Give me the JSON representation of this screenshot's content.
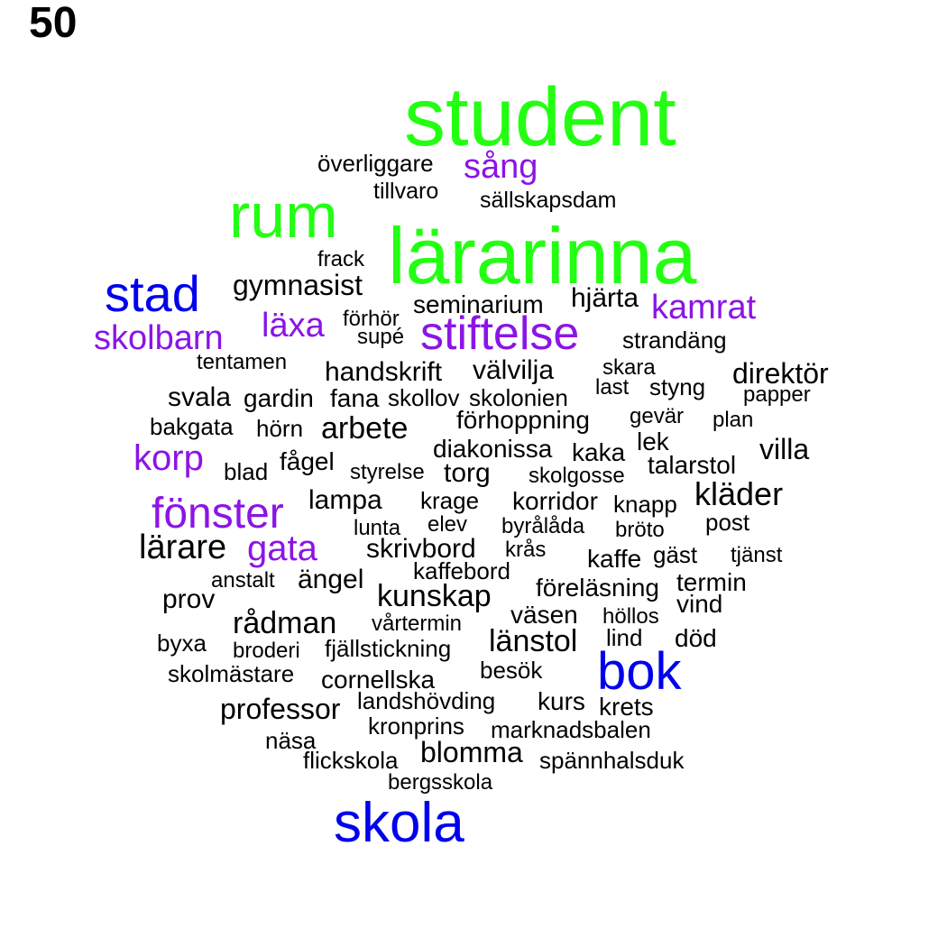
{
  "page_number": "50",
  "colors": {
    "green": "#22ff11",
    "blue": "#0000ee",
    "purple": "#8b14e6",
    "black": "#000000"
  },
  "words": [
    {
      "text": "student",
      "color": "green"
    },
    {
      "text": "överliggare",
      "color": "black"
    },
    {
      "text": "sång",
      "color": "purple"
    },
    {
      "text": "tillvaro",
      "color": "black"
    },
    {
      "text": "sällskapsdam",
      "color": "black"
    },
    {
      "text": "rum",
      "color": "green"
    },
    {
      "text": "lärarinna",
      "color": "green"
    },
    {
      "text": "frack",
      "color": "black"
    },
    {
      "text": "stad",
      "color": "blue"
    },
    {
      "text": "gymnasist",
      "color": "black"
    },
    {
      "text": "seminarium",
      "color": "black"
    },
    {
      "text": "hjärta",
      "color": "black"
    },
    {
      "text": "kamrat",
      "color": "purple"
    },
    {
      "text": "läxa",
      "color": "purple"
    },
    {
      "text": "förhör",
      "color": "black"
    },
    {
      "text": "stiftelse",
      "color": "purple"
    },
    {
      "text": "skolbarn",
      "color": "purple"
    },
    {
      "text": "supé",
      "color": "black"
    },
    {
      "text": "strandäng",
      "color": "black"
    },
    {
      "text": "tentamen",
      "color": "black"
    },
    {
      "text": "handskrift",
      "color": "black"
    },
    {
      "text": "välvilja",
      "color": "black"
    },
    {
      "text": "skara",
      "color": "black"
    },
    {
      "text": "direktör",
      "color": "black"
    },
    {
      "text": "svala",
      "color": "black"
    },
    {
      "text": "gardin",
      "color": "black"
    },
    {
      "text": "fana",
      "color": "black"
    },
    {
      "text": "skollov",
      "color": "black"
    },
    {
      "text": "skolonien",
      "color": "black"
    },
    {
      "text": "last",
      "color": "black"
    },
    {
      "text": "styng",
      "color": "black"
    },
    {
      "text": "papper",
      "color": "black"
    },
    {
      "text": "bakgata",
      "color": "black"
    },
    {
      "text": "hörn",
      "color": "black"
    },
    {
      "text": "arbete",
      "color": "black"
    },
    {
      "text": "förhoppning",
      "color": "black"
    },
    {
      "text": "gevär",
      "color": "black"
    },
    {
      "text": "plan",
      "color": "black"
    },
    {
      "text": "korp",
      "color": "purple"
    },
    {
      "text": "diakonissa",
      "color": "black"
    },
    {
      "text": "kaka",
      "color": "black"
    },
    {
      "text": "lek",
      "color": "black"
    },
    {
      "text": "villa",
      "color": "black"
    },
    {
      "text": "blad",
      "color": "black"
    },
    {
      "text": "fågel",
      "color": "black"
    },
    {
      "text": "styrelse",
      "color": "black"
    },
    {
      "text": "torg",
      "color": "black"
    },
    {
      "text": "skolgosse",
      "color": "black"
    },
    {
      "text": "talarstol",
      "color": "black"
    },
    {
      "text": "fönster",
      "color": "purple"
    },
    {
      "text": "lampa",
      "color": "black"
    },
    {
      "text": "krage",
      "color": "black"
    },
    {
      "text": "korridor",
      "color": "black"
    },
    {
      "text": "knapp",
      "color": "black"
    },
    {
      "text": "kläder",
      "color": "black"
    },
    {
      "text": "lunta",
      "color": "black"
    },
    {
      "text": "elev",
      "color": "black"
    },
    {
      "text": "byrålåda",
      "color": "black"
    },
    {
      "text": "bröto",
      "color": "black"
    },
    {
      "text": "post",
      "color": "black"
    },
    {
      "text": "lärare",
      "color": "black"
    },
    {
      "text": "gata",
      "color": "purple"
    },
    {
      "text": "skrivbord",
      "color": "black"
    },
    {
      "text": "krås",
      "color": "black"
    },
    {
      "text": "kaffe",
      "color": "black"
    },
    {
      "text": "gäst",
      "color": "black"
    },
    {
      "text": "tjänst",
      "color": "black"
    },
    {
      "text": "anstalt",
      "color": "black"
    },
    {
      "text": "ängel",
      "color": "black"
    },
    {
      "text": "kaffebord",
      "color": "black"
    },
    {
      "text": "föreläsning",
      "color": "black"
    },
    {
      "text": "termin",
      "color": "black"
    },
    {
      "text": "prov",
      "color": "black"
    },
    {
      "text": "kunskap",
      "color": "black"
    },
    {
      "text": "vind",
      "color": "black"
    },
    {
      "text": "rådman",
      "color": "black"
    },
    {
      "text": "vårtermin",
      "color": "black"
    },
    {
      "text": "väsen",
      "color": "black"
    },
    {
      "text": "höllos",
      "color": "black"
    },
    {
      "text": "byxa",
      "color": "black"
    },
    {
      "text": "broderi",
      "color": "black"
    },
    {
      "text": "fjällstickning",
      "color": "black"
    },
    {
      "text": "länstol",
      "color": "black"
    },
    {
      "text": "lind",
      "color": "black"
    },
    {
      "text": "död",
      "color": "black"
    },
    {
      "text": "skolmästare",
      "color": "black"
    },
    {
      "text": "cornellska",
      "color": "black"
    },
    {
      "text": "besök",
      "color": "black"
    },
    {
      "text": "bok",
      "color": "blue"
    },
    {
      "text": "professor",
      "color": "black"
    },
    {
      "text": "landshövding",
      "color": "black"
    },
    {
      "text": "kurs",
      "color": "black"
    },
    {
      "text": "krets",
      "color": "black"
    },
    {
      "text": "kronprins",
      "color": "black"
    },
    {
      "text": "marknadsbalen",
      "color": "black"
    },
    {
      "text": "näsa",
      "color": "black"
    },
    {
      "text": "blomma",
      "color": "black"
    },
    {
      "text": "flickskola",
      "color": "black"
    },
    {
      "text": "spännhalsduk",
      "color": "black"
    },
    {
      "text": "bergsskola",
      "color": "black"
    },
    {
      "text": "skola",
      "color": "blue"
    }
  ]
}
